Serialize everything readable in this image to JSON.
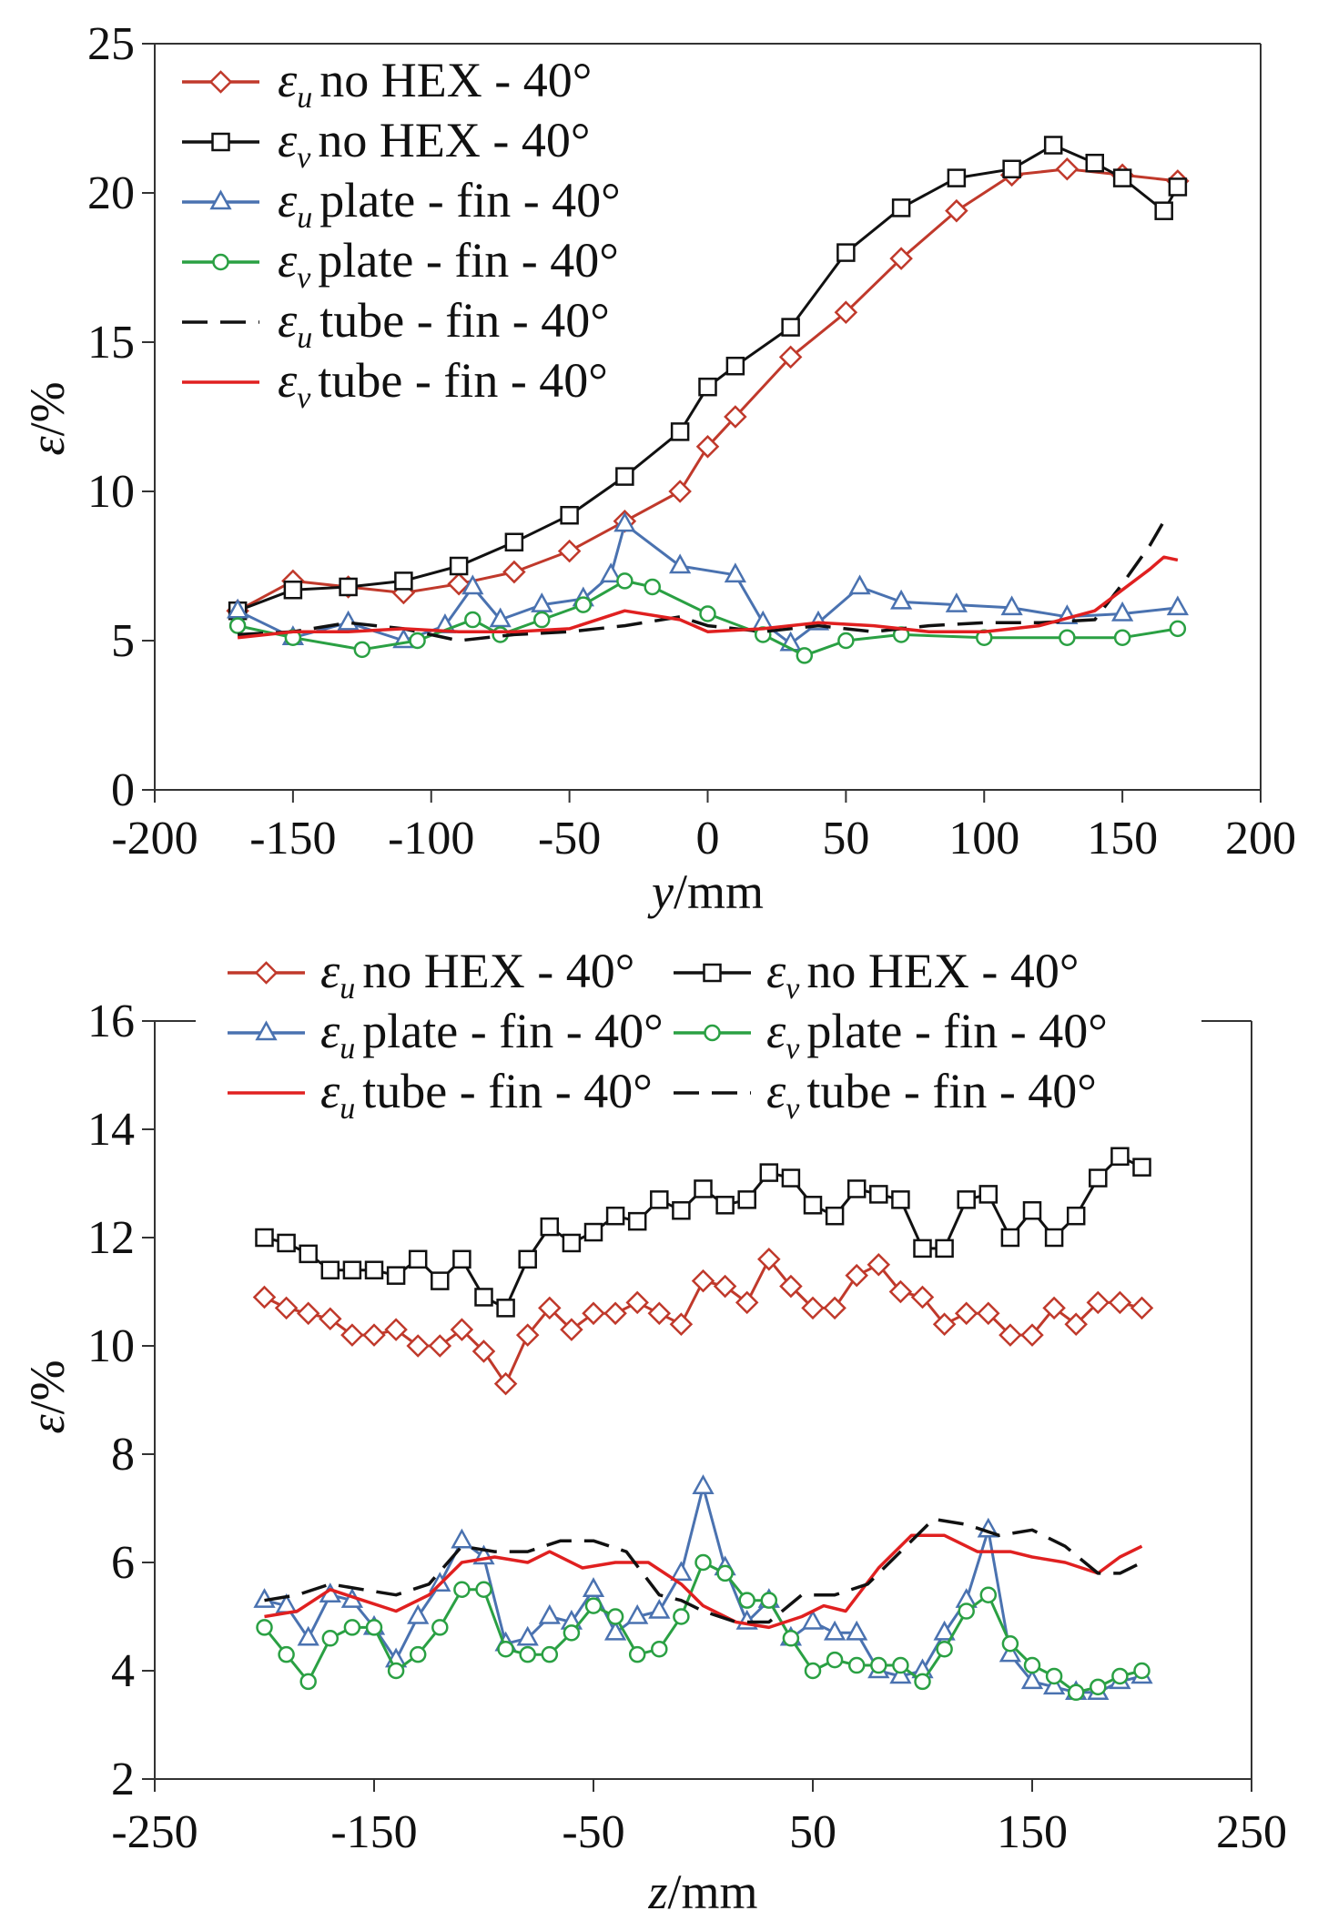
{
  "chart_data": [
    {
      "type": "line",
      "xlabel_var": "y",
      "xlabel_unit": "/mm",
      "ylabel_sym": "ε",
      "ylabel_unit": "/%",
      "xlim": [
        -200,
        200
      ],
      "ylim": [
        0,
        25
      ],
      "xticks": [
        -200,
        -150,
        -100,
        -50,
        0,
        50,
        100,
        150,
        200
      ],
      "yticks": [
        0,
        5,
        10,
        15,
        20,
        25
      ],
      "legend_position": "top-left",
      "colors": {
        "red_marker": "#c0392b",
        "black": "#111111",
        "blue": "#4a72b0",
        "green": "#2aa043",
        "red_line": "#e02020"
      },
      "series": [
        {
          "name": "εu no HEX - 40°",
          "sym": "ε",
          "sub": "u",
          "desc": "no HEX - 40°",
          "marker": "diamond",
          "color": "#c0392b",
          "dash": "",
          "x": [
            -170,
            -150,
            -130,
            -110,
            -90,
            -70,
            -50,
            -30,
            -10,
            0,
            10,
            30,
            50,
            70,
            90,
            110,
            130,
            150,
            170
          ],
          "y": [
            6.0,
            7.0,
            6.8,
            6.6,
            6.9,
            7.3,
            8.0,
            9.0,
            10.0,
            11.5,
            12.5,
            14.5,
            16.0,
            17.8,
            19.4,
            20.6,
            20.8,
            20.6,
            20.4
          ]
        },
        {
          "name": "εv no HEX - 40°",
          "sym": "ε",
          "sub": "v",
          "desc": "no HEX - 40°",
          "marker": "square",
          "color": "#111111",
          "dash": "",
          "x": [
            -170,
            -150,
            -130,
            -110,
            -90,
            -70,
            -50,
            -30,
            -10,
            0,
            10,
            30,
            50,
            70,
            90,
            110,
            125,
            140,
            150,
            165,
            170
          ],
          "y": [
            6.0,
            6.7,
            6.8,
            7.0,
            7.5,
            8.3,
            9.2,
            10.5,
            12.0,
            13.5,
            14.2,
            15.5,
            18.0,
            19.5,
            20.5,
            20.8,
            21.6,
            21.0,
            20.5,
            19.4,
            20.2
          ]
        },
        {
          "name": "εu plate - fin - 40°",
          "sym": "ε",
          "sub": "u",
          "desc": "plate - fin - 40°",
          "marker": "triangle",
          "color": "#4a72b0",
          "dash": "",
          "x": [
            -170,
            -150,
            -130,
            -110,
            -95,
            -85,
            -75,
            -60,
            -45,
            -35,
            -30,
            -10,
            10,
            20,
            30,
            40,
            55,
            70,
            90,
            110,
            130,
            150,
            170
          ],
          "y": [
            6.0,
            5.1,
            5.6,
            5.0,
            5.5,
            6.8,
            5.7,
            6.2,
            6.4,
            7.2,
            8.9,
            7.5,
            7.2,
            5.6,
            4.9,
            5.6,
            6.8,
            6.3,
            6.2,
            6.1,
            5.8,
            5.9,
            6.1
          ]
        },
        {
          "name": "εv plate - fin - 40°",
          "sym": "ε",
          "sub": "v",
          "desc": "plate - fin - 40°",
          "marker": "circle",
          "color": "#2aa043",
          "dash": "",
          "x": [
            -170,
            -150,
            -125,
            -105,
            -85,
            -75,
            -60,
            -45,
            -30,
            -20,
            0,
            20,
            35,
            50,
            70,
            100,
            130,
            150,
            170
          ],
          "y": [
            5.5,
            5.1,
            4.7,
            5.0,
            5.7,
            5.2,
            5.7,
            6.2,
            7.0,
            6.8,
            5.9,
            5.2,
            4.5,
            5.0,
            5.2,
            5.1,
            5.1,
            5.1,
            5.4
          ]
        },
        {
          "name": "εu tube - fin - 40°",
          "sym": "ε",
          "sub": "u",
          "desc": "tube - fin - 40°",
          "marker": "none",
          "color": "#111111",
          "dash": "28,14",
          "x": [
            -170,
            -150,
            -130,
            -110,
            -90,
            -70,
            -50,
            -30,
            -10,
            0,
            20,
            40,
            60,
            80,
            100,
            120,
            140,
            150,
            160,
            165
          ],
          "y": [
            5.2,
            5.3,
            5.6,
            5.4,
            5.0,
            5.2,
            5.3,
            5.5,
            5.8,
            5.5,
            5.3,
            5.5,
            5.3,
            5.5,
            5.6,
            5.6,
            5.7,
            6.9,
            8.2,
            9.0
          ]
        },
        {
          "name": "εv tube - fin - 40°",
          "sym": "ε",
          "sub": "v",
          "desc": "tube - fin - 40°",
          "marker": "none",
          "color": "#e02020",
          "dash": "",
          "x": [
            -170,
            -150,
            -130,
            -110,
            -90,
            -70,
            -50,
            -30,
            -10,
            0,
            20,
            40,
            60,
            80,
            100,
            120,
            140,
            150,
            160,
            165,
            170
          ],
          "y": [
            5.1,
            5.3,
            5.3,
            5.4,
            5.3,
            5.3,
            5.4,
            6.0,
            5.7,
            5.3,
            5.4,
            5.6,
            5.5,
            5.3,
            5.3,
            5.5,
            6.0,
            6.7,
            7.4,
            7.8,
            7.7
          ]
        }
      ]
    },
    {
      "type": "line",
      "xlabel_var": "z",
      "xlabel_unit": "/mm",
      "ylabel_sym": "ε",
      "ylabel_unit": "/%",
      "xlim": [
        -250,
        250
      ],
      "ylim": [
        2,
        16
      ],
      "xticks": [
        -250,
        -150,
        -50,
        50,
        150,
        250
      ],
      "yticks": [
        2,
        4,
        6,
        8,
        10,
        12,
        14,
        16
      ],
      "legend_position": "top (two columns)",
      "series": [
        {
          "name": "εu no HEX - 40°",
          "sym": "ε",
          "sub": "u",
          "desc": "no HEX - 40°",
          "marker": "diamond",
          "color": "#c0392b",
          "dash": "",
          "x": [
            -200,
            -190,
            -180,
            -170,
            -160,
            -150,
            -140,
            -130,
            -120,
            -110,
            -100,
            -90,
            -80,
            -70,
            -60,
            -50,
            -40,
            -30,
            -20,
            -10,
            0,
            10,
            20,
            30,
            40,
            50,
            60,
            70,
            80,
            90,
            100,
            110,
            120,
            130,
            140,
            150,
            160,
            170,
            180,
            190,
            200
          ],
          "y": [
            10.9,
            10.7,
            10.6,
            10.5,
            10.2,
            10.2,
            10.3,
            10.0,
            10.0,
            10.3,
            9.9,
            9.3,
            10.2,
            10.7,
            10.3,
            10.6,
            10.6,
            10.8,
            10.6,
            10.4,
            11.2,
            11.1,
            10.8,
            11.6,
            11.1,
            10.7,
            10.7,
            11.3,
            11.5,
            11.0,
            10.9,
            10.4,
            10.6,
            10.6,
            10.2,
            10.2,
            10.7,
            10.4,
            10.8,
            10.8,
            10.7
          ]
        },
        {
          "name": "εv no HEX - 40°",
          "sym": "ε",
          "sub": "v",
          "desc": "no HEX - 40°",
          "marker": "square",
          "color": "#111111",
          "dash": "",
          "x": [
            -200,
            -190,
            -180,
            -170,
            -160,
            -150,
            -140,
            -130,
            -120,
            -110,
            -100,
            -90,
            -80,
            -70,
            -60,
            -50,
            -40,
            -30,
            -20,
            -10,
            0,
            10,
            20,
            30,
            40,
            50,
            60,
            70,
            80,
            90,
            100,
            110,
            120,
            130,
            140,
            150,
            160,
            170,
            180,
            190,
            200
          ],
          "y": [
            12.0,
            11.9,
            11.7,
            11.4,
            11.4,
            11.4,
            11.3,
            11.6,
            11.2,
            11.6,
            10.9,
            10.7,
            11.6,
            12.2,
            11.9,
            12.1,
            12.4,
            12.3,
            12.7,
            12.5,
            12.9,
            12.6,
            12.7,
            13.2,
            13.1,
            12.6,
            12.4,
            12.9,
            12.8,
            12.7,
            11.8,
            11.8,
            12.7,
            12.8,
            12.0,
            12.5,
            12.0,
            12.4,
            13.1,
            13.5,
            13.3
          ]
        },
        {
          "name": "εu plate - fin - 40°",
          "sym": "ε",
          "sub": "u",
          "desc": "plate - fin - 40°",
          "marker": "triangle",
          "color": "#4a72b0",
          "dash": "",
          "x": [
            -200,
            -190,
            -180,
            -170,
            -160,
            -150,
            -140,
            -130,
            -120,
            -110,
            -100,
            -90,
            -80,
            -70,
            -60,
            -50,
            -40,
            -30,
            -20,
            -10,
            0,
            10,
            20,
            30,
            40,
            50,
            60,
            70,
            80,
            90,
            100,
            110,
            120,
            130,
            140,
            150,
            160,
            170,
            180,
            190,
            200
          ],
          "y": [
            5.3,
            5.2,
            4.6,
            5.4,
            5.3,
            4.8,
            4.2,
            5.0,
            5.6,
            6.4,
            6.1,
            4.5,
            4.6,
            5.0,
            4.9,
            5.5,
            4.7,
            5.0,
            5.1,
            5.8,
            7.4,
            5.9,
            4.9,
            5.3,
            4.6,
            4.9,
            4.7,
            4.7,
            4.0,
            3.9,
            4.0,
            4.7,
            5.3,
            6.6,
            4.3,
            3.8,
            3.7,
            3.6,
            3.6,
            3.8,
            3.9
          ]
        },
        {
          "name": "εv plate - fin - 40°",
          "sym": "ε",
          "sub": "v",
          "desc": "plate - fin - 40°",
          "marker": "circle",
          "color": "#2aa043",
          "dash": "",
          "x": [
            -200,
            -190,
            -180,
            -170,
            -160,
            -150,
            -140,
            -130,
            -120,
            -110,
            -100,
            -90,
            -80,
            -70,
            -60,
            -50,
            -40,
            -30,
            -20,
            -10,
            0,
            10,
            20,
            30,
            40,
            50,
            60,
            70,
            80,
            90,
            100,
            110,
            120,
            130,
            140,
            150,
            160,
            170,
            180,
            190,
            200
          ],
          "y": [
            4.8,
            4.3,
            3.8,
            4.6,
            4.8,
            4.8,
            4.0,
            4.3,
            4.8,
            5.5,
            5.5,
            4.4,
            4.3,
            4.3,
            4.7,
            5.2,
            5.0,
            4.3,
            4.4,
            5.0,
            6.0,
            5.8,
            5.3,
            5.3,
            4.6,
            4.0,
            4.2,
            4.1,
            4.1,
            4.1,
            3.8,
            4.4,
            5.1,
            5.4,
            4.5,
            4.1,
            3.9,
            3.6,
            3.7,
            3.9,
            4.0
          ]
        },
        {
          "name": "εu tube - fin - 40°",
          "sym": "ε",
          "sub": "u",
          "desc": "tube - fin - 40°",
          "marker": "none",
          "color": "#e02020",
          "dash": "",
          "x": [
            -200,
            -185,
            -170,
            -155,
            -140,
            -125,
            -110,
            -95,
            -80,
            -70,
            -55,
            -40,
            -25,
            -10,
            0,
            15,
            30,
            45,
            55,
            65,
            80,
            95,
            110,
            125,
            140,
            150,
            165,
            180,
            190,
            200
          ],
          "y": [
            5.0,
            5.1,
            5.5,
            5.3,
            5.1,
            5.4,
            6.0,
            6.1,
            6.0,
            6.2,
            5.9,
            6.0,
            6.0,
            5.6,
            5.2,
            4.9,
            4.8,
            5.0,
            5.2,
            5.1,
            5.9,
            6.5,
            6.5,
            6.2,
            6.2,
            6.1,
            6.0,
            5.8,
            6.1,
            6.3
          ]
        },
        {
          "name": "εv tube - fin - 40°",
          "sym": "ε",
          "sub": "v",
          "desc": "tube - fin - 40°",
          "marker": "none",
          "color": "#111111",
          "dash": "28,14",
          "x": [
            -200,
            -185,
            -170,
            -155,
            -140,
            -125,
            -110,
            -95,
            -80,
            -65,
            -50,
            -35,
            -20,
            -10,
            0,
            15,
            30,
            45,
            60,
            75,
            90,
            105,
            120,
            135,
            150,
            165,
            180,
            190,
            200
          ],
          "y": [
            5.3,
            5.4,
            5.6,
            5.5,
            5.4,
            5.6,
            6.3,
            6.2,
            6.2,
            6.4,
            6.4,
            6.2,
            5.4,
            5.3,
            5.1,
            4.9,
            4.9,
            5.4,
            5.4,
            5.6,
            6.2,
            6.8,
            6.7,
            6.5,
            6.6,
            6.3,
            5.8,
            5.8,
            6.0
          ]
        }
      ]
    }
  ]
}
